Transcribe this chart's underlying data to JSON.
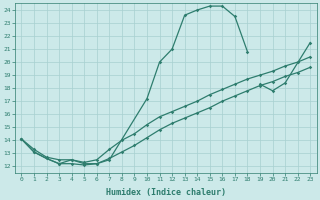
{
  "xlabel": "Humidex (Indice chaleur)",
  "xlim": [
    -0.5,
    23.5
  ],
  "ylim": [
    11.5,
    24.5
  ],
  "xticks": [
    0,
    1,
    2,
    3,
    4,
    5,
    6,
    7,
    8,
    9,
    10,
    11,
    12,
    13,
    14,
    15,
    16,
    17,
    18,
    19,
    20,
    21,
    22,
    23
  ],
  "yticks": [
    12,
    13,
    14,
    15,
    16,
    17,
    18,
    19,
    20,
    21,
    22,
    23,
    24
  ],
  "bg_color": "#cce9e9",
  "line_color": "#2e7d6e",
  "grid_color": "#a8d0d0",
  "line1_y": [
    14.1,
    13.1,
    12.6,
    12.2,
    12.5,
    12.2,
    12.2,
    12.5,
    null,
    null,
    17.2,
    20.0,
    21.0,
    23.6,
    24.0,
    24.3,
    24.3,
    23.5,
    20.8,
    null,
    null,
    null,
    null,
    null
  ],
  "line2_y": [
    null,
    null,
    null,
    null,
    null,
    null,
    null,
    null,
    null,
    null,
    null,
    null,
    null,
    null,
    null,
    null,
    null,
    null,
    null,
    18.3,
    17.8,
    18.4,
    null,
    21.5
  ],
  "line3_y": [
    14.1,
    13.3,
    12.7,
    12.5,
    12.5,
    12.3,
    12.5,
    13.3,
    14.0,
    14.5,
    15.2,
    15.8,
    16.2,
    16.6,
    17.0,
    17.5,
    17.9,
    18.3,
    18.7,
    19.0,
    19.3,
    19.7,
    20.0,
    20.4
  ],
  "line4_y": [
    14.1,
    13.1,
    12.6,
    12.2,
    12.2,
    12.1,
    12.2,
    12.6,
    13.1,
    13.6,
    14.2,
    14.8,
    15.3,
    15.7,
    16.1,
    16.5,
    17.0,
    17.4,
    17.8,
    18.2,
    18.5,
    18.9,
    19.2,
    19.6
  ]
}
